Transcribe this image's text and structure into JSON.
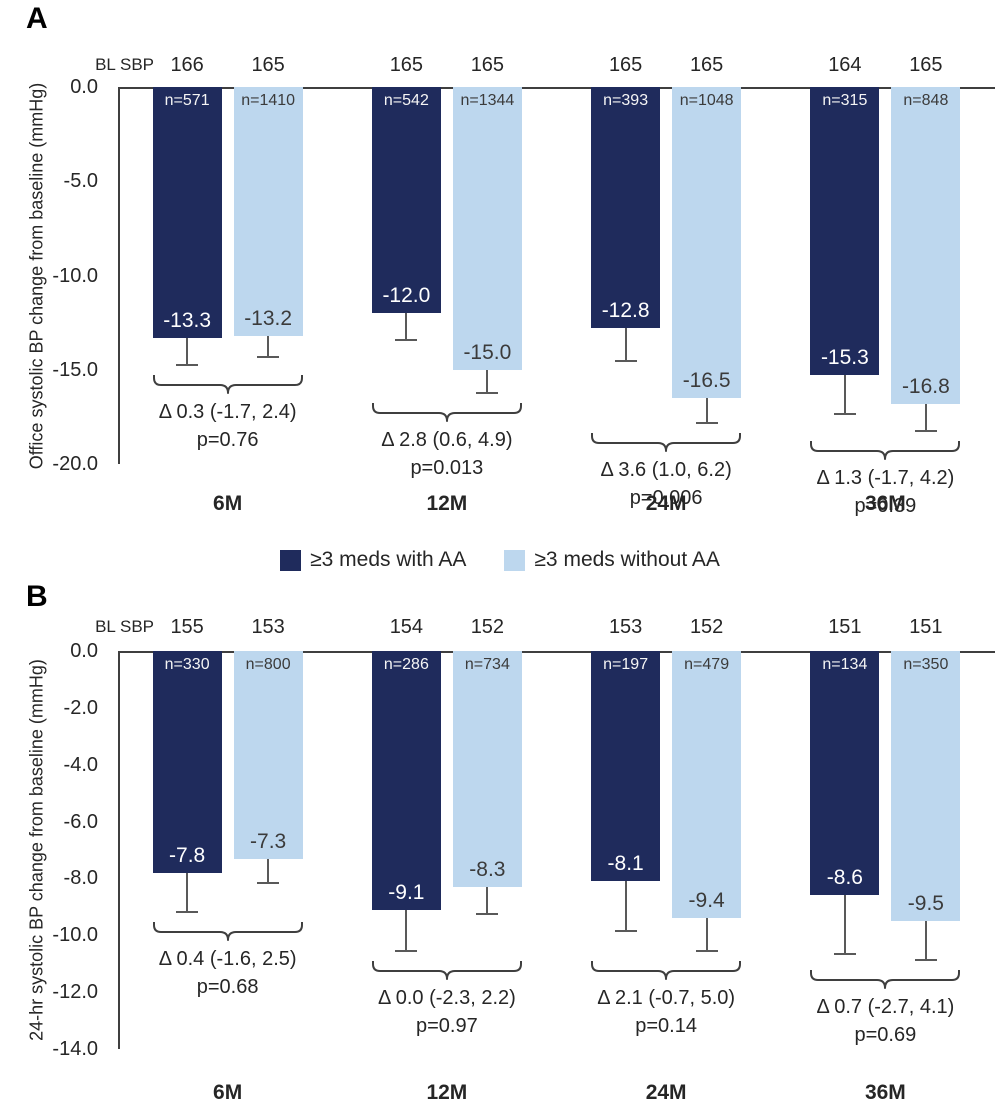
{
  "colors": {
    "with_aa": "#1F2B5C",
    "without_aa": "#BDD7EE",
    "axis": "#3F3F3F",
    "error_bar": "#595959",
    "text": "#262626",
    "value_on_light": "#3B3B3B",
    "value_on_dark": "#FFFFFF"
  },
  "legend": {
    "items": [
      {
        "label": "≥3 meds with AA",
        "color_key": "with_aa"
      },
      {
        "label": "≥3 meds without AA",
        "color_key": "without_aa"
      }
    ]
  },
  "chart_data": [
    {
      "type": "bar",
      "panel": "A",
      "ylabel": "Office systolic BP change from baseline (mmHg)",
      "bl_sbp_label": "BL SBP",
      "categories": [
        "6M",
        "12M",
        "24M",
        "36M"
      ],
      "yticks": [
        "0.0",
        "-5.0",
        "-10.0",
        "-15.0",
        "-20.0"
      ],
      "ylim": [
        0,
        -20
      ],
      "grid": false,
      "series": [
        {
          "name": "≥3 meds with AA",
          "color_key": "with_aa",
          "values": [
            -13.3,
            -12.0,
            -12.8,
            -15.3
          ],
          "value_labels": [
            "-13.3",
            "-12.0",
            "-12.8",
            "-15.3"
          ],
          "bl_sbp": [
            166,
            165,
            165,
            164
          ],
          "n_labels": [
            "n=571",
            "n=542",
            "n=393",
            "n=315"
          ],
          "err_lower": [
            1.5,
            1.5,
            1.8,
            2.1
          ]
        },
        {
          "name": "≥3 meds without AA",
          "color_key": "without_aa",
          "values": [
            -13.2,
            -15.0,
            -16.5,
            -16.8
          ],
          "value_labels": [
            "-13.2",
            "-15.0",
            "-16.5",
            "-16.8"
          ],
          "bl_sbp": [
            165,
            165,
            165,
            165
          ],
          "n_labels": [
            "n=1410",
            "n=1344",
            "n=1048",
            "n=848"
          ],
          "err_lower": [
            1.2,
            1.3,
            1.4,
            1.5
          ]
        }
      ],
      "annotations": [
        {
          "delta": "Δ 0.3 (-1.7, 2.4)",
          "p": "p=0.76"
        },
        {
          "delta": "Δ 2.8 (0.6, 4.9)",
          "p": "p=0.013"
        },
        {
          "delta": "Δ 3.6 (1.0, 6.2)",
          "p": "p=0.006"
        },
        {
          "delta": "Δ 1.3 (-1.7, 4.2)",
          "p": "p=0.39"
        }
      ]
    },
    {
      "type": "bar",
      "panel": "B",
      "ylabel": "24-hr systolic BP change from baseline (mmHg)",
      "bl_sbp_label": "BL SBP",
      "categories": [
        "6M",
        "12M",
        "24M",
        "36M"
      ],
      "yticks": [
        "0.0",
        "-2.0",
        "-4.0",
        "-6.0",
        "-8.0",
        "-10.0",
        "-12.0",
        "-14.0"
      ],
      "ylim": [
        0,
        -14
      ],
      "grid": false,
      "series": [
        {
          "name": "≥3 meds with AA",
          "color_key": "with_aa",
          "values": [
            -7.8,
            -9.1,
            -8.1,
            -8.6
          ],
          "value_labels": [
            "-7.8",
            "-9.1",
            "-8.1",
            "-8.6"
          ],
          "bl_sbp": [
            155,
            154,
            153,
            151
          ],
          "n_labels": [
            "n=330",
            "n=286",
            "n=197",
            "n=134"
          ],
          "err_lower": [
            1.4,
            1.5,
            1.8,
            2.1
          ]
        },
        {
          "name": "≥3 meds without AA",
          "color_key": "without_aa",
          "values": [
            -7.3,
            -8.3,
            -9.4,
            -9.5
          ],
          "value_labels": [
            "-7.3",
            "-8.3",
            "-9.4",
            "-9.5"
          ],
          "bl_sbp": [
            153,
            152,
            152,
            151
          ],
          "n_labels": [
            "n=800",
            "n=734",
            "n=479",
            "n=350"
          ],
          "err_lower": [
            0.9,
            1.0,
            1.2,
            1.4
          ]
        }
      ],
      "annotations": [
        {
          "delta": "Δ 0.4 (-1.6, 2.5)",
          "p": "p=0.68"
        },
        {
          "delta": "Δ 0.0 (-2.3, 2.2)",
          "p": "p=0.97"
        },
        {
          "delta": "Δ 2.1 (-0.7, 5.0)",
          "p": "p=0.14"
        },
        {
          "delta": "Δ 0.7 (-2.7, 4.1)",
          "p": "p=0.69"
        }
      ]
    }
  ]
}
